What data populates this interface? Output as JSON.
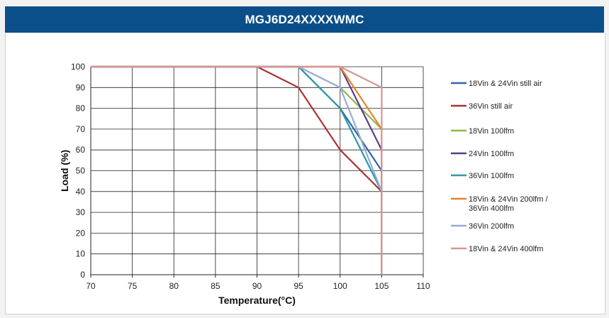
{
  "header": {
    "title": "MGJ6D24XXXXWMC"
  },
  "chart_data": {
    "type": "line",
    "title": "",
    "xlabel": "Temperature(°C)",
    "ylabel": "Load (%)",
    "xlim": [
      70,
      110
    ],
    "ylim": [
      0,
      100
    ],
    "xticks": [
      70,
      75,
      80,
      85,
      90,
      95,
      100,
      105,
      110
    ],
    "yticks": [
      0,
      10,
      20,
      30,
      40,
      50,
      60,
      70,
      80,
      90,
      100
    ],
    "grid": "vertical and horizontal",
    "legend_position": "right",
    "series": [
      {
        "name": "18Vin & 24Vin still air",
        "color": "#3465a4",
        "points": [
          [
            70,
            100
          ],
          [
            95,
            100
          ],
          [
            100,
            80
          ],
          [
            105,
            50
          ],
          [
            105,
            0
          ]
        ]
      },
      {
        "name": "36Vin still air",
        "color": "#a83232",
        "points": [
          [
            70,
            100
          ],
          [
            90,
            100
          ],
          [
            95,
            90
          ],
          [
            100,
            60
          ],
          [
            105,
            40
          ],
          [
            105,
            0
          ]
        ]
      },
      {
        "name": "18Vin 100lfm",
        "color": "#8fb84a",
        "points": [
          [
            70,
            100
          ],
          [
            95,
            100
          ],
          [
            100,
            90
          ],
          [
            105,
            70
          ],
          [
            105,
            0
          ]
        ]
      },
      {
        "name": "24Vin 100lfm",
        "color": "#5a3d8c",
        "points": [
          [
            70,
            100
          ],
          [
            100,
            100
          ],
          [
            105,
            60
          ],
          [
            105,
            0
          ]
        ]
      },
      {
        "name": "36Vin 100lfm",
        "color": "#2e98a6",
        "points": [
          [
            70,
            100
          ],
          [
            95,
            100
          ],
          [
            100,
            80
          ],
          [
            105,
            40
          ],
          [
            105,
            0
          ]
        ]
      },
      {
        "name": "18Vin & 24Vin 200lfm / 36Vin 400lfm",
        "color": "#e8822a",
        "points": [
          [
            70,
            100
          ],
          [
            100,
            100
          ],
          [
            105,
            70
          ],
          [
            105,
            0
          ]
        ]
      },
      {
        "name": "36Vin 200lfm",
        "color": "#95aed6",
        "points": [
          [
            70,
            100
          ],
          [
            95,
            100
          ],
          [
            100,
            90
          ],
          [
            105,
            40
          ],
          [
            105,
            0
          ]
        ]
      },
      {
        "name": "18Vin & 24Vin 400lfm",
        "color": "#d99594",
        "points": [
          [
            70,
            100
          ],
          [
            100,
            100
          ],
          [
            105,
            90
          ],
          [
            105,
            0
          ]
        ]
      }
    ]
  }
}
